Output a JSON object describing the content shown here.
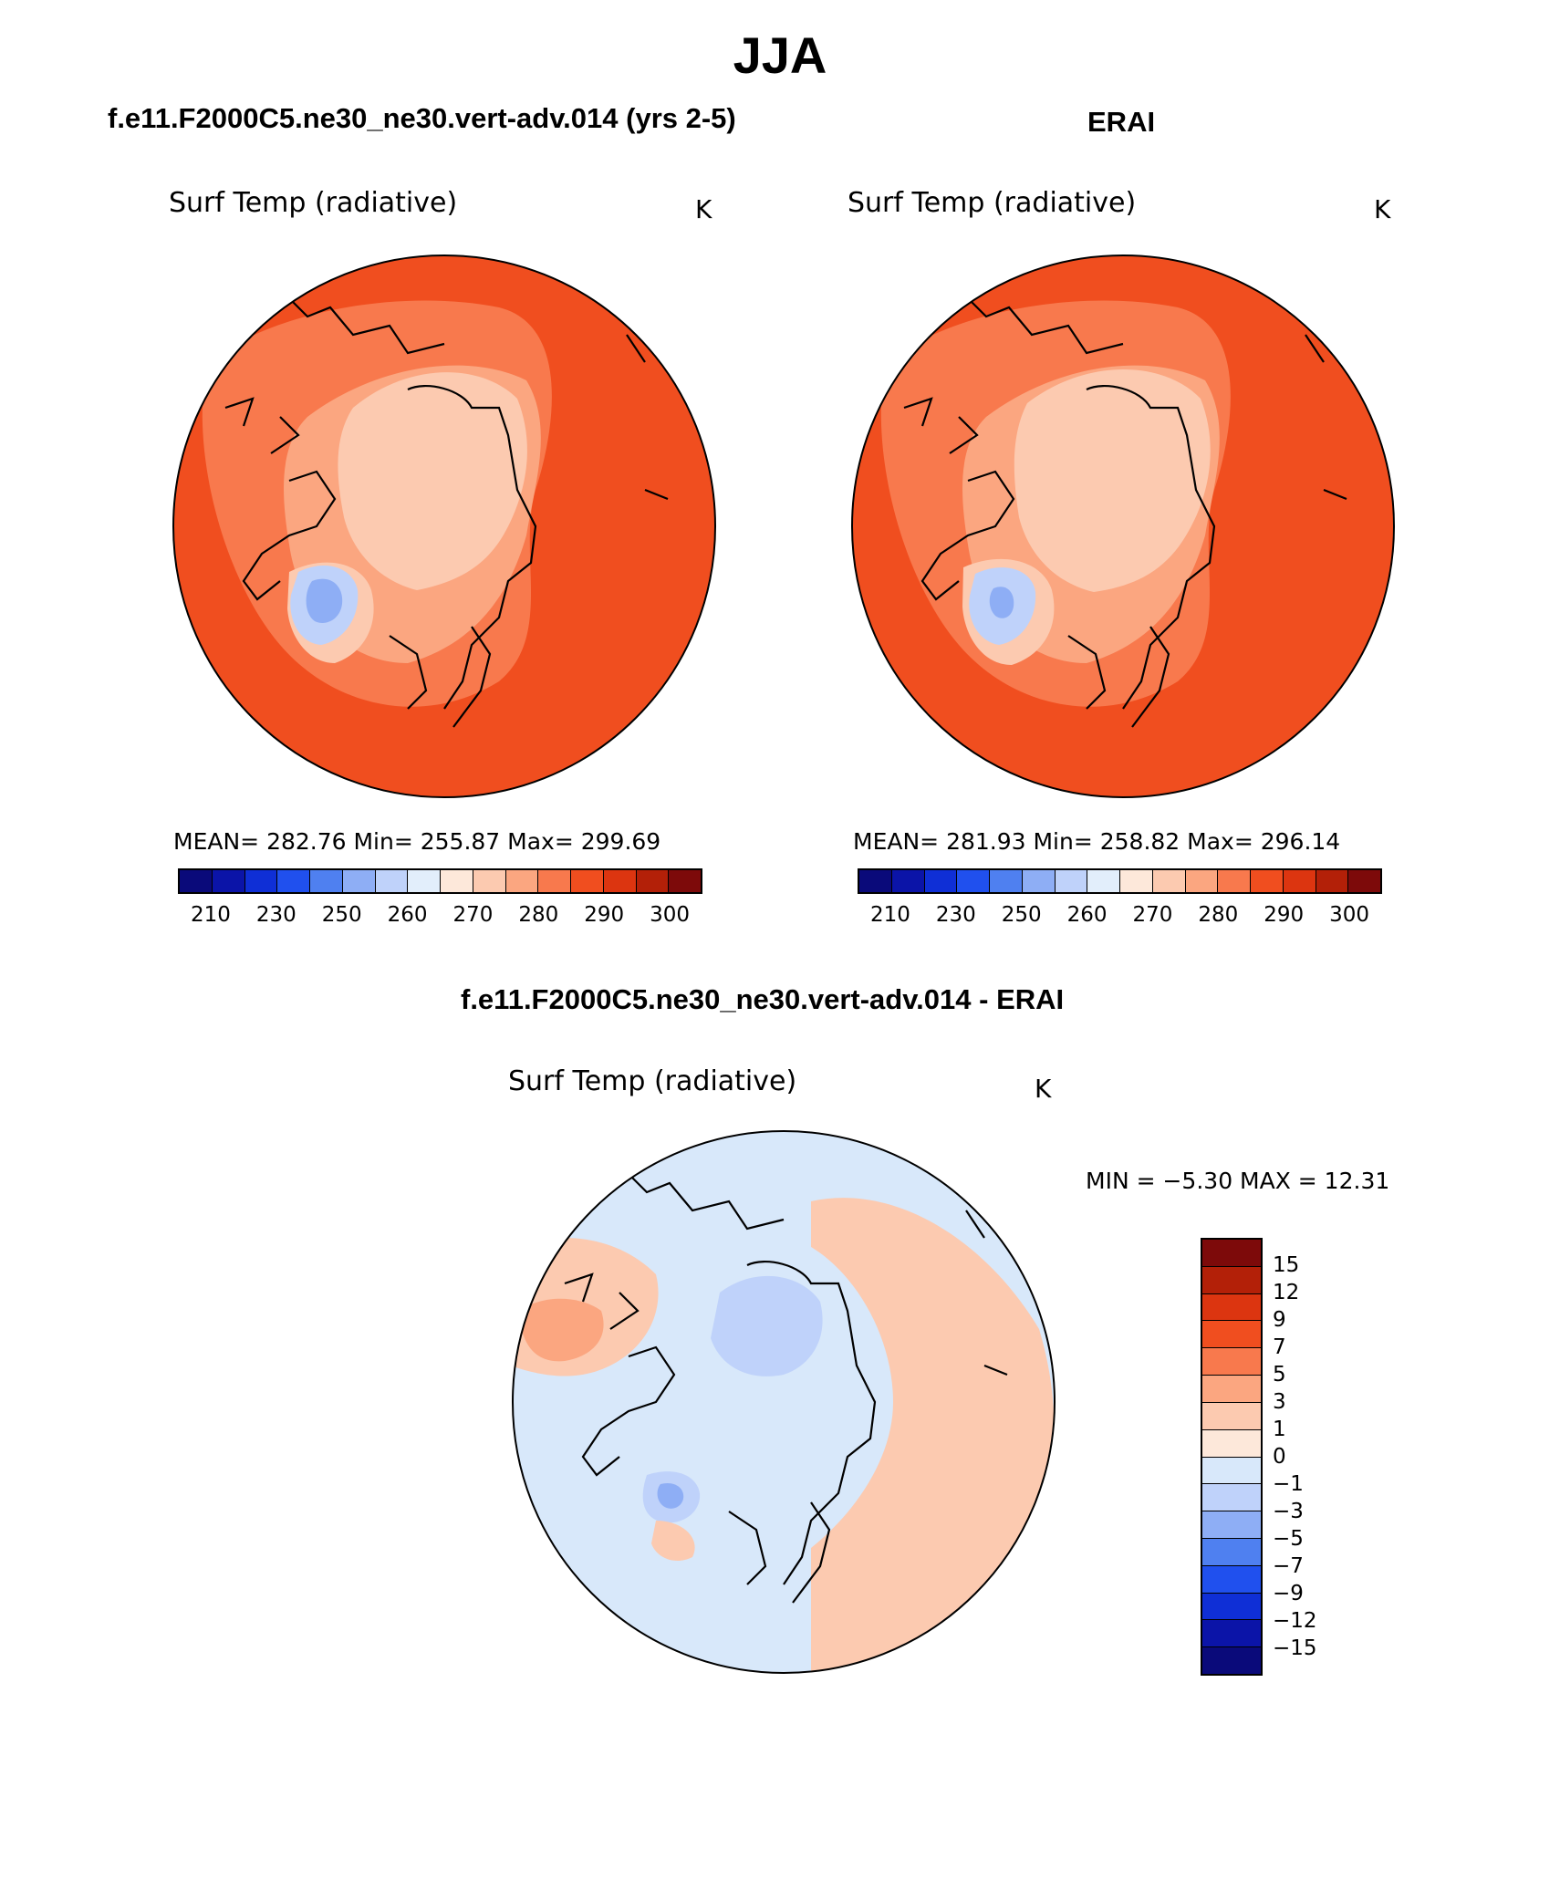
{
  "figure": {
    "title": "JJA",
    "case_title": "f.e11.F2000C5.ne30_ne30.vert-adv.014 (yrs 2-5)",
    "obs_title": "ERAI",
    "diff_title": "f.e11.F2000C5.ne30_ne30.vert-adv.014 - ERAI"
  },
  "panels": [
    {
      "variable": "Surf Temp (radiative)",
      "units": "K",
      "stats_text": "MEAN= 282.76   Min= 255.87   Max= 299.69"
    },
    {
      "variable": "Surf Temp (radiative)",
      "units": "K",
      "stats_text": "MEAN= 281.93   Min= 258.82   Max= 296.14"
    },
    {
      "variable": "Surf Temp (radiative)",
      "units": "K",
      "stats_text": "MIN =   −5.30  MAX =   12.31"
    }
  ],
  "colorbar_abs": {
    "colors": [
      "#0a0a7a",
      "#0b14a8",
      "#0f2fd6",
      "#2050ee",
      "#4f80f0",
      "#8eaef5",
      "#bfd2fa",
      "#e2eefb",
      "#fde8da",
      "#fccab0",
      "#fba680",
      "#f8794d",
      "#f04e1f",
      "#dc3510",
      "#b32008",
      "#7d0a0a"
    ],
    "tick_labels": [
      "210",
      "230",
      "250",
      "260",
      "270",
      "280",
      "290",
      "300"
    ]
  },
  "colorbar_diff": {
    "colors": [
      "#7d0a0a",
      "#b32008",
      "#dc3510",
      "#f04e1f",
      "#f8794d",
      "#fba680",
      "#fccab0",
      "#fde8da",
      "#d8e8fa",
      "#bfd2fa",
      "#8eaef5",
      "#4f80f0",
      "#2050ee",
      "#0f2fd6",
      "#0b14a8",
      "#0a0a7a"
    ],
    "tick_labels": [
      "15",
      "12",
      "9",
      "7",
      "5",
      "3",
      "1",
      "0",
      "−1",
      "−3",
      "−5",
      "−7",
      "−9",
      "−12",
      "−15"
    ]
  },
  "map_colors": {
    "warm_outer": "#f04e1f",
    "warm_mid": "#f8794d",
    "warm_light": "#fba680",
    "arctic": "#fccab0",
    "greenland_cold": "#bfd2fa",
    "greenland_colder": "#8eaef5",
    "diff_base": "#d8e8fa",
    "diff_warm": "#fccab0",
    "diff_cool": "#bfd2fa"
  }
}
